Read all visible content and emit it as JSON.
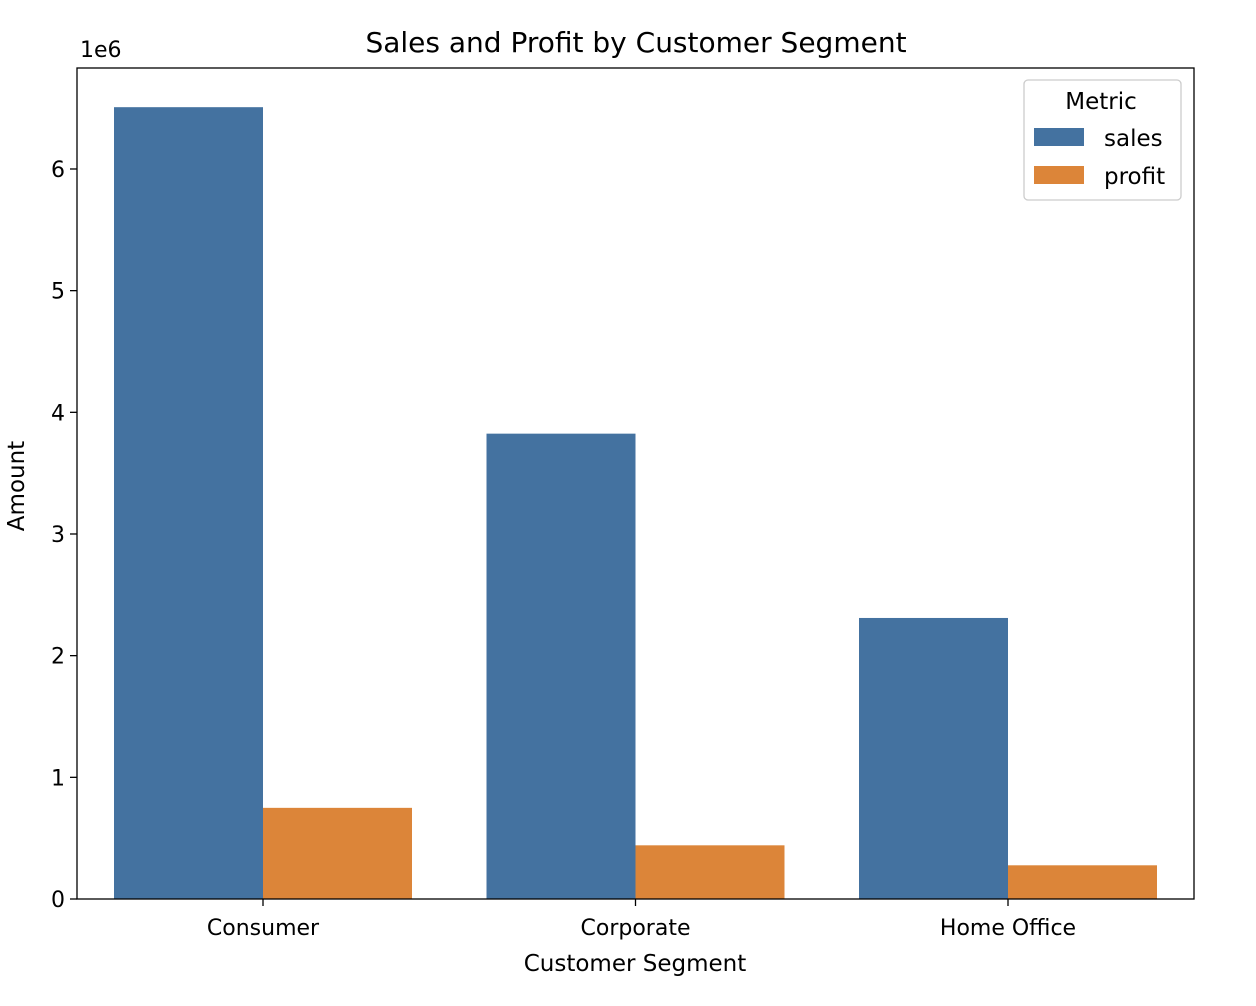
{
  "chart_data": {
    "type": "bar",
    "title": "Sales and Profit by Customer Segment",
    "xlabel": "Customer Segment",
    "ylabel": "Amount",
    "scale_label": "1e6",
    "categories": [
      "Consumer",
      "Corporate",
      "Home Office"
    ],
    "series": [
      {
        "name": "sales",
        "values": [
          6507949,
          3824697,
          2309855
        ],
        "color": "#4472a0"
      },
      {
        "name": "profit",
        "values": [
          749240,
          441208,
          277010
        ],
        "color": "#dc8539"
      }
    ],
    "ylim": [
      0,
      6830000
    ],
    "yticks": [
      0,
      1000000,
      2000000,
      3000000,
      4000000,
      5000000,
      6000000
    ],
    "ytick_labels": [
      "0",
      "1",
      "2",
      "3",
      "4",
      "5",
      "6"
    ],
    "legend": {
      "title": "Metric",
      "placement": "top-right"
    },
    "grid": false
  }
}
